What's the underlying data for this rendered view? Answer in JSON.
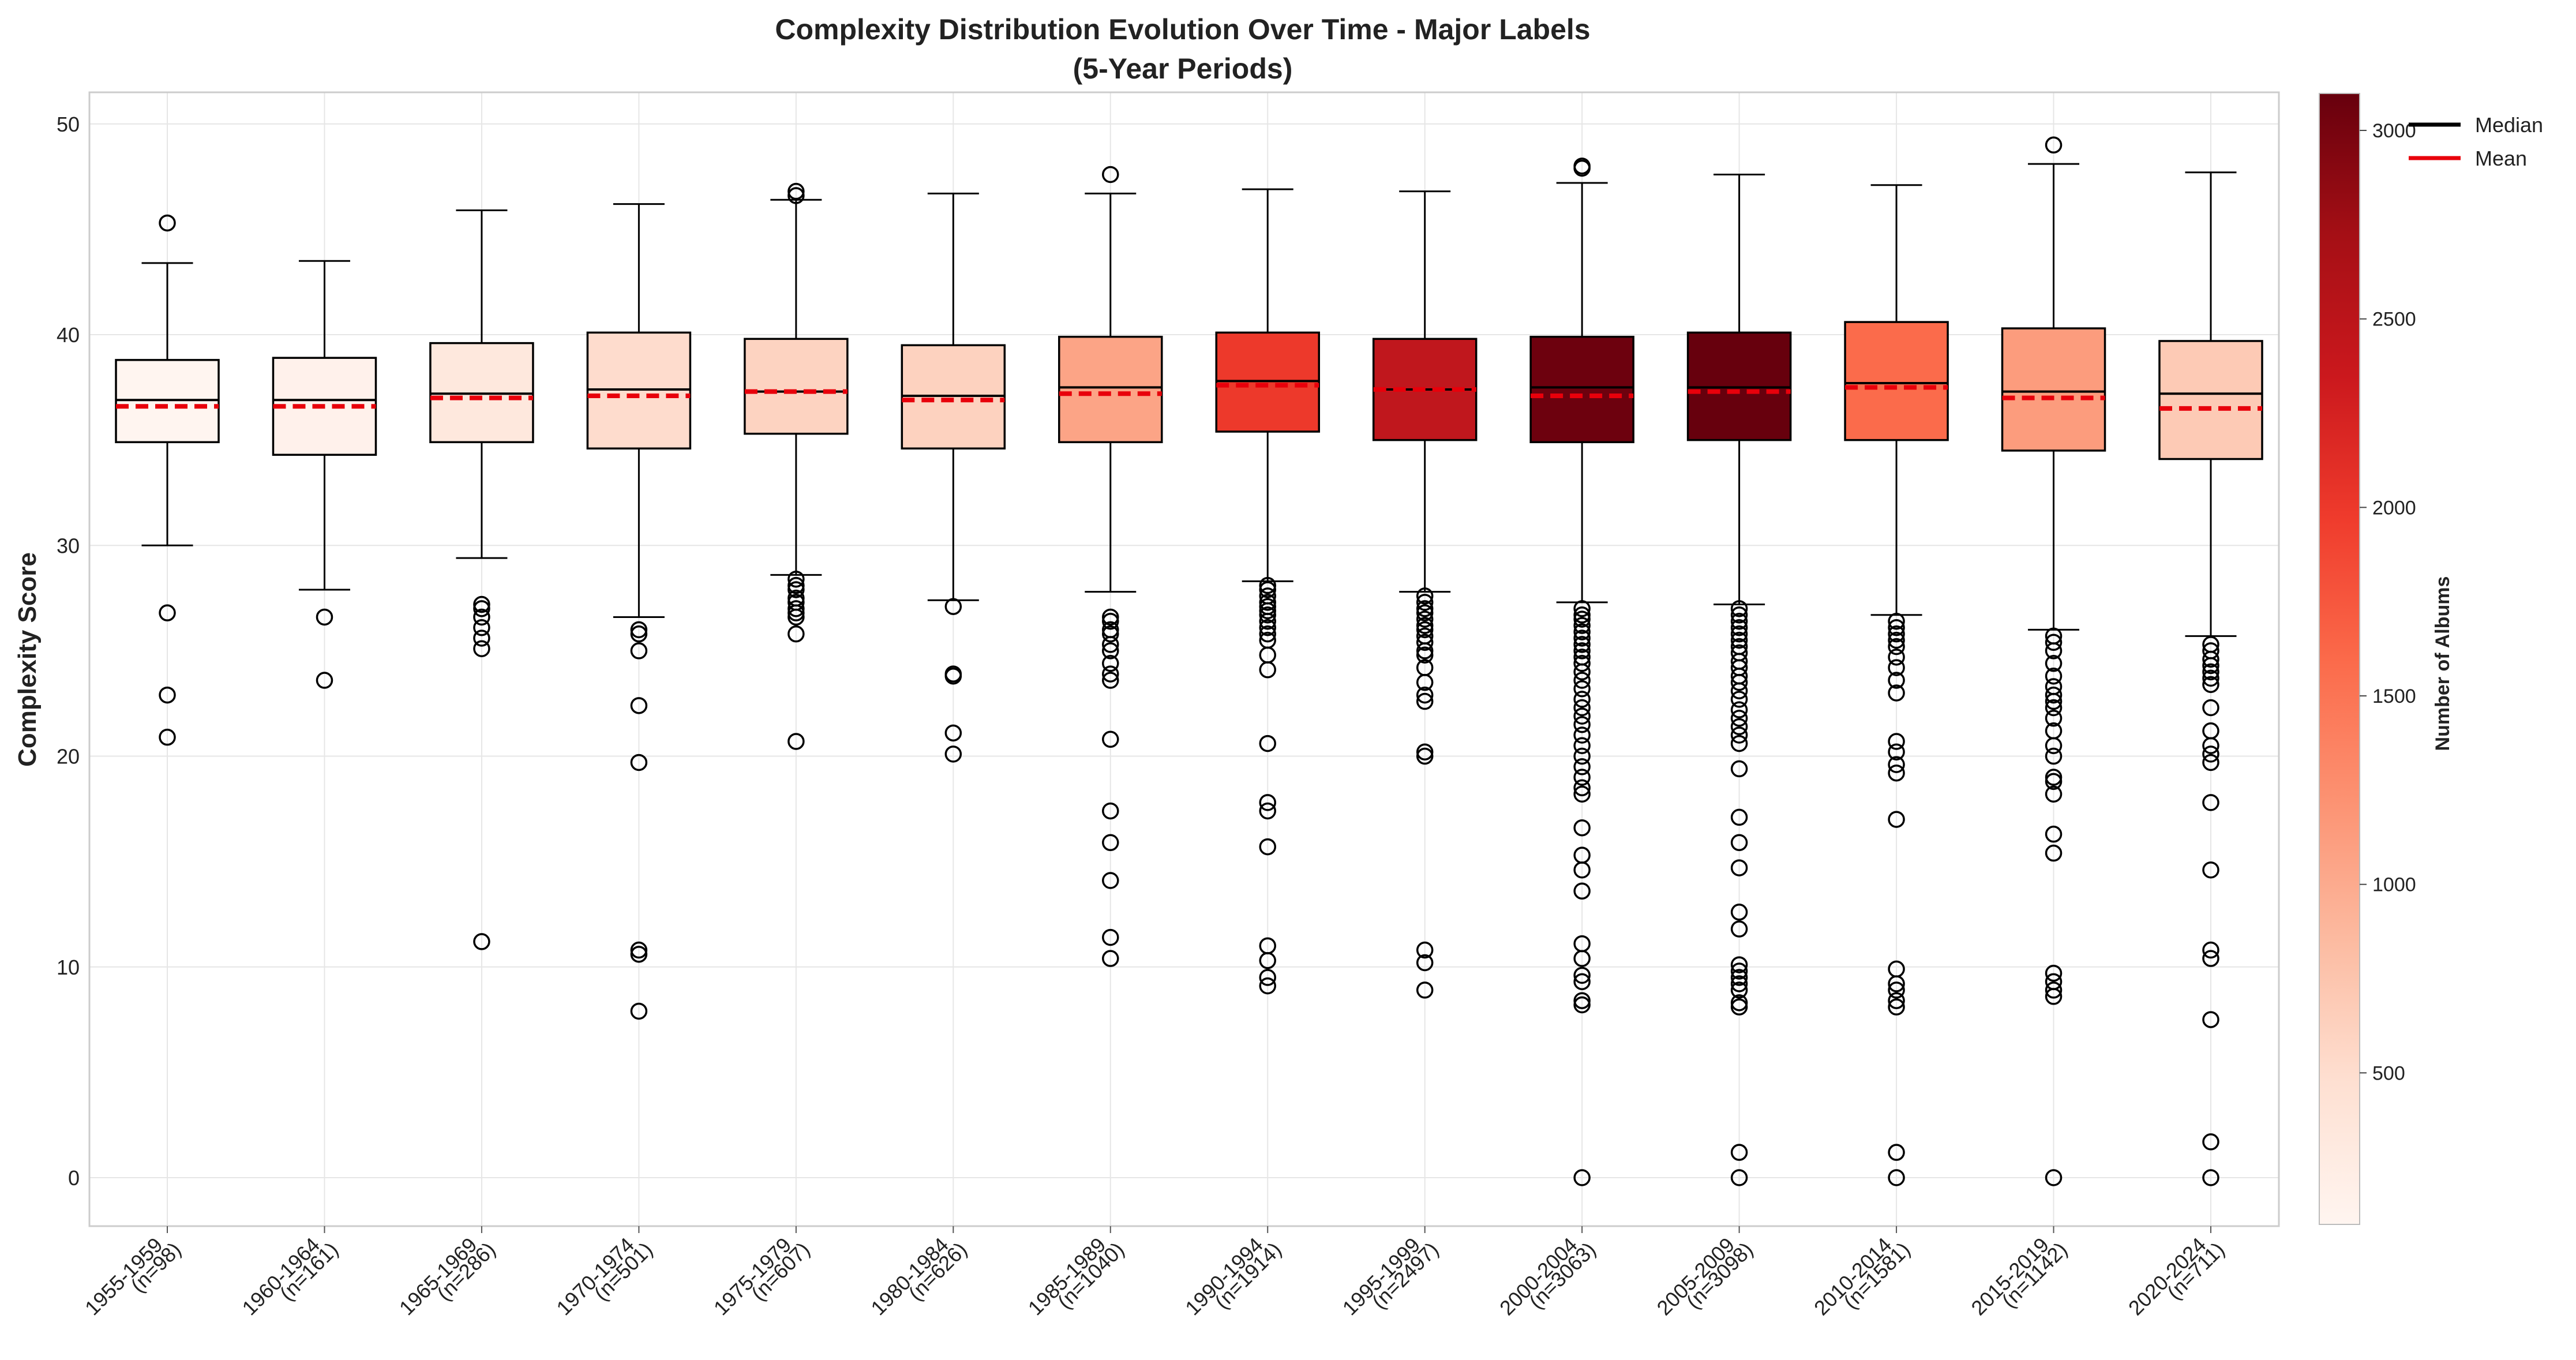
{
  "chart_data": {
    "type": "box",
    "title": "Complexity Distribution Evolution Over Time - Major Labels",
    "subtitle": "(5-Year Periods)",
    "ylabel": "Complexity Score",
    "xlabel": "",
    "ylim": [
      -2.3,
      51.5
    ],
    "yticks": [
      0,
      10,
      20,
      30,
      40,
      50
    ],
    "grid": true,
    "legend": {
      "placement": "top-right",
      "entries": [
        {
          "label": "Median",
          "color": "#000000",
          "style": "solid"
        },
        {
          "label": "Mean",
          "color": "#e8000b",
          "style": "solid"
        }
      ]
    },
    "colorbar": {
      "label": "Number of Albums",
      "colormap": "Reds",
      "range": [
        98,
        3098
      ],
      "ticks": [
        500,
        1000,
        1500,
        2000,
        2500,
        3000
      ]
    },
    "colors": {
      "median_line": "#000000",
      "mean_line": "#e8000b",
      "box_edge": "#000000"
    },
    "periods": [
      {
        "label": "1955-1959",
        "n_label": "(n=98)",
        "n": 98,
        "q1": 34.9,
        "median": 36.9,
        "q3": 38.8,
        "mean": 36.6,
        "whisker_low": 30.0,
        "whisker_high": 43.4,
        "outliers": [
          45.3,
          26.8,
          22.9,
          20.9
        ],
        "fill": "#fff5f0"
      },
      {
        "label": "1960-1964",
        "n_label": "(n=161)",
        "n": 161,
        "q1": 34.3,
        "median": 36.9,
        "q3": 38.9,
        "mean": 36.6,
        "whisker_low": 27.9,
        "whisker_high": 43.5,
        "outliers": [
          26.6,
          23.6
        ],
        "fill": "#fff1eb"
      },
      {
        "label": "1965-1969",
        "n_label": "(n=286)",
        "n": 286,
        "q1": 34.9,
        "median": 37.2,
        "q3": 39.6,
        "mean": 37.0,
        "whisker_low": 29.4,
        "whisker_high": 45.9,
        "outliers": [
          27.2,
          27.0,
          26.6,
          26.1,
          25.6,
          25.1,
          11.2
        ],
        "fill": "#fee8dd"
      },
      {
        "label": "1970-1974",
        "n_label": "(n=501)",
        "n": 501,
        "q1": 34.6,
        "median": 37.4,
        "q3": 40.1,
        "mean": 37.1,
        "whisker_low": 26.6,
        "whisker_high": 46.2,
        "outliers": [
          26.0,
          25.8,
          25.0,
          22.4,
          19.7,
          10.8,
          10.6,
          7.9
        ],
        "fill": "#fedccd"
      },
      {
        "label": "1975-1979",
        "n_label": "(n=607)",
        "n": 607,
        "q1": 35.3,
        "median": 37.3,
        "q3": 39.8,
        "mean": 37.3,
        "whisker_low": 28.6,
        "whisker_high": 46.4,
        "outliers": [
          46.8,
          46.6,
          28.4,
          28.1,
          27.9,
          27.5,
          27.3,
          27.0,
          26.8,
          26.6,
          25.8,
          20.7
        ],
        "fill": "#fdd3c1"
      },
      {
        "label": "1980-1984",
        "n_label": "(n=626)",
        "n": 626,
        "q1": 34.6,
        "median": 37.1,
        "q3": 39.5,
        "mean": 36.9,
        "whisker_low": 27.4,
        "whisker_high": 46.7,
        "outliers": [
          27.1,
          23.9,
          23.8,
          21.1,
          20.1
        ],
        "fill": "#fdd2bf"
      },
      {
        "label": "1985-1989",
        "n_label": "(n=1040)",
        "n": 1040,
        "q1": 34.9,
        "median": 37.5,
        "q3": 39.9,
        "mean": 37.2,
        "whisker_low": 27.8,
        "whisker_high": 46.7,
        "outliers": [
          47.6,
          26.6,
          26.4,
          26.0,
          25.8,
          25.3,
          25.0,
          24.4,
          23.9,
          23.6,
          20.8,
          17.4,
          15.9,
          14.1,
          11.4,
          10.4
        ],
        "fill": "#fca486"
      },
      {
        "label": "1990-1994",
        "n_label": "(n=1914)",
        "n": 1914,
        "q1": 35.4,
        "median": 37.8,
        "q3": 40.1,
        "mean": 37.6,
        "whisker_low": 28.3,
        "whisker_high": 46.9,
        "outliers": [
          28.1,
          27.9,
          27.6,
          27.3,
          27.1,
          26.9,
          26.7,
          26.4,
          26.1,
          25.8,
          25.5,
          24.8,
          24.1,
          20.6,
          17.8,
          17.4,
          15.7,
          11.0,
          10.3,
          9.5,
          9.1
        ],
        "fill": "#ed392b"
      },
      {
        "label": "1995-1999",
        "n_label": "(n=2497)",
        "n": 2497,
        "q1": 35.0,
        "median": 37.4,
        "q3": 39.8,
        "mean": 37.4,
        "whisker_low": 27.8,
        "whisker_high": 46.8,
        "outliers": [
          27.6,
          27.3,
          27.0,
          26.8,
          26.5,
          26.2,
          26.0,
          25.7,
          25.4,
          25.0,
          24.8,
          24.2,
          23.5,
          22.9,
          22.6,
          20.2,
          20.0,
          10.8,
          10.2,
          8.9
        ],
        "fill": "#c0171d"
      },
      {
        "label": "2000-2004",
        "n_label": "(n=3063)",
        "n": 3063,
        "q1": 34.9,
        "median": 37.5,
        "q3": 39.9,
        "mean": 37.1,
        "whisker_low": 27.3,
        "whisker_high": 47.2,
        "outliers": [
          48.0,
          47.9,
          27.0,
          26.7,
          26.5,
          26.2,
          25.9,
          25.6,
          25.3,
          25.0,
          24.7,
          24.4,
          24.0,
          23.6,
          23.2,
          22.7,
          22.3,
          21.9,
          21.5,
          21.0,
          20.5,
          20.0,
          19.5,
          19.0,
          18.5,
          18.2,
          16.6,
          15.3,
          14.6,
          13.6,
          11.1,
          10.4,
          9.6,
          9.3,
          8.4,
          8.2,
          0.0
        ],
        "fill": "#6d010e"
      },
      {
        "label": "2005-2009",
        "n_label": "(n=3098)",
        "n": 3098,
        "q1": 35.0,
        "median": 37.5,
        "q3": 40.1,
        "mean": 37.3,
        "whisker_low": 27.2,
        "whisker_high": 47.6,
        "outliers": [
          27.0,
          26.7,
          26.4,
          26.1,
          25.8,
          25.5,
          25.2,
          24.9,
          24.5,
          24.2,
          23.8,
          23.5,
          23.1,
          22.7,
          22.2,
          21.8,
          21.4,
          21.0,
          20.6,
          19.4,
          17.1,
          15.9,
          14.7,
          12.6,
          11.8,
          10.1,
          9.8,
          9.5,
          9.2,
          8.9,
          8.3,
          8.1,
          1.2,
          0.0
        ],
        "fill": "#67000d"
      },
      {
        "label": "2010-2014",
        "n_label": "(n=1581)",
        "n": 1581,
        "q1": 35.0,
        "median": 37.7,
        "q3": 40.6,
        "mean": 37.5,
        "whisker_low": 26.7,
        "whisker_high": 47.1,
        "outliers": [
          26.4,
          26.1,
          25.8,
          25.5,
          25.2,
          24.7,
          24.2,
          23.6,
          23.0,
          20.7,
          20.2,
          19.6,
          19.2,
          17.0,
          9.9,
          9.2,
          8.9,
          8.4,
          8.1,
          1.2,
          0.0
        ],
        "fill": "#fb6b4b"
      },
      {
        "label": "2015-2019",
        "n_label": "(n=1142)",
        "n": 1142,
        "q1": 34.5,
        "median": 37.3,
        "q3": 40.3,
        "mean": 37.0,
        "whisker_low": 26.0,
        "whisker_high": 48.1,
        "outliers": [
          49.0,
          25.7,
          25.4,
          25.0,
          24.4,
          23.8,
          23.3,
          22.9,
          22.6,
          22.3,
          21.8,
          21.2,
          20.5,
          20.0,
          19.0,
          18.8,
          18.2,
          16.3,
          15.4,
          9.7,
          9.3,
          8.9,
          8.6,
          0.0
        ],
        "fill": "#fc9c7d"
      },
      {
        "label": "2020-2024",
        "n_label": "(n=711)",
        "n": 711,
        "q1": 34.1,
        "median": 37.2,
        "q3": 39.7,
        "mean": 36.5,
        "whisker_low": 25.7,
        "whisker_high": 47.7,
        "outliers": [
          25.3,
          25.0,
          24.6,
          24.3,
          24.0,
          23.7,
          23.4,
          22.3,
          21.2,
          20.5,
          20.1,
          19.7,
          17.8,
          14.6,
          10.8,
          10.4,
          7.5,
          1.7,
          0.0
        ],
        "fill": "#fdcab5"
      }
    ]
  }
}
